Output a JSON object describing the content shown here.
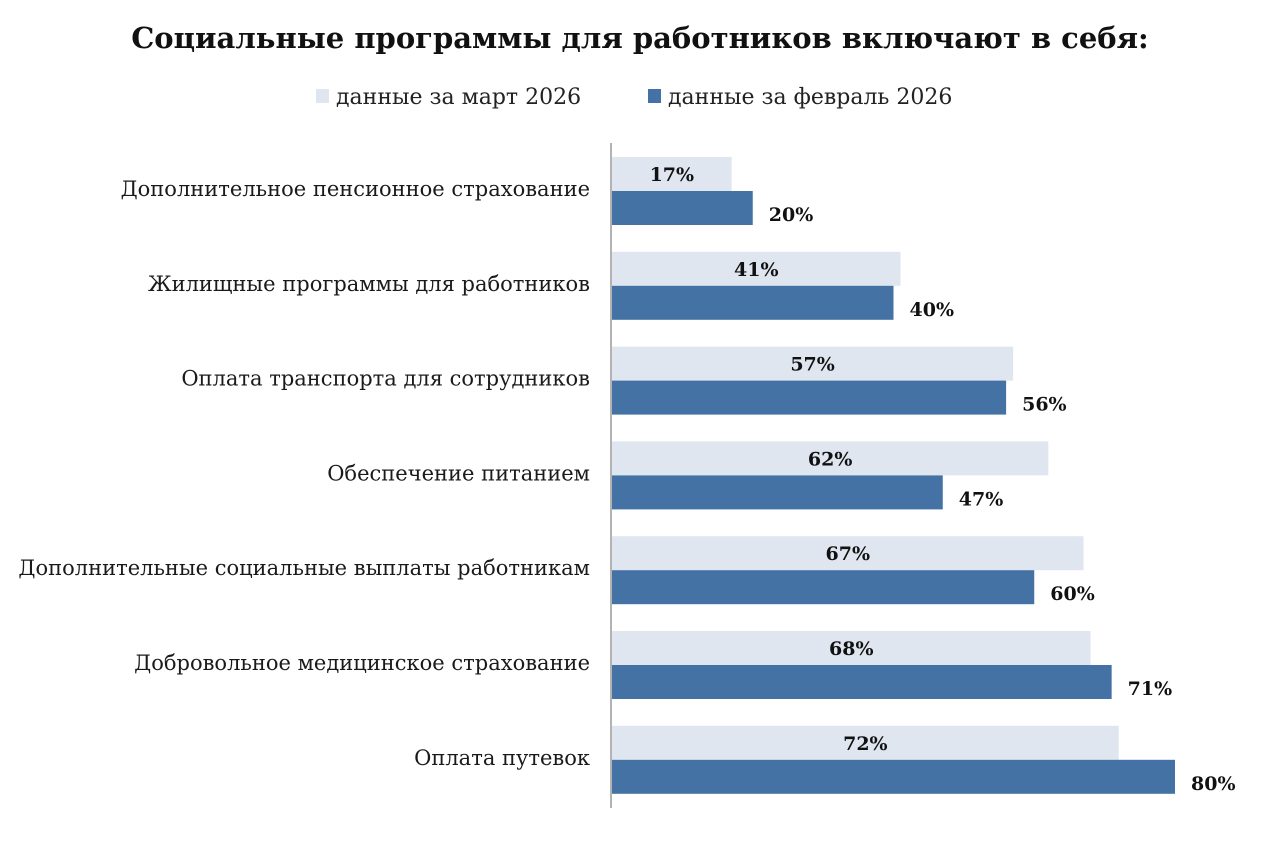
{
  "chart_data": {
    "type": "bar",
    "orientation": "horizontal",
    "title": "Социальные программы для работников включают в себя:",
    "legend_position": "top",
    "grid": false,
    "xlim": [
      0,
      80
    ],
    "categories": [
      "Дополнительное пенсионное страхование",
      "Жилищные программы для работников",
      "Оплата транспорта для сотрудников",
      "Обеспечение питанием",
      "Дополнительные социальные выплаты работникам",
      "Добровольное медицинское страхование",
      "Оплата путевок"
    ],
    "series": [
      {
        "name": "данные за март 2026",
        "color": "#dfe6f0",
        "values": [
          17,
          41,
          57,
          62,
          67,
          68,
          72
        ],
        "labels": [
          "17%",
          "41%",
          "57%",
          "62%",
          "67%",
          "68%",
          "72%"
        ]
      },
      {
        "name": "данные за февраль 2026",
        "color": "#4472a5",
        "values": [
          20,
          40,
          56,
          47,
          60,
          71,
          80
        ],
        "labels": [
          "20%",
          "40%",
          "56%",
          "47%",
          "60%",
          "71%",
          "80%"
        ]
      }
    ]
  }
}
